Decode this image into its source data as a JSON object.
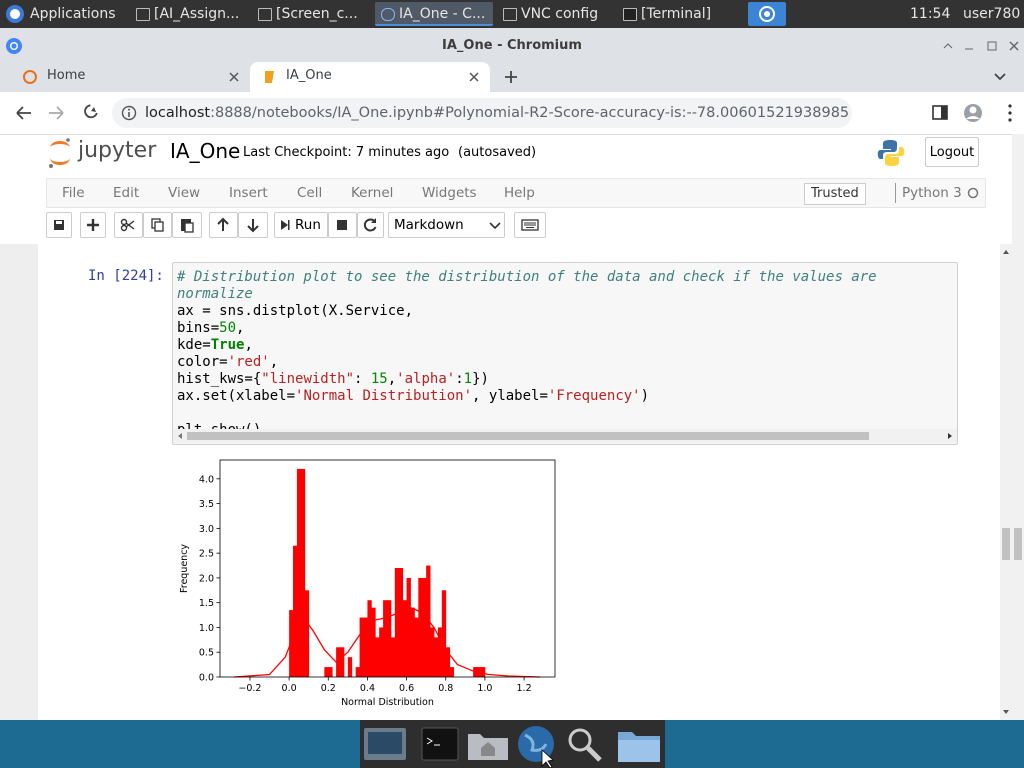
{
  "taskbar": {
    "menu": "Applications",
    "windows": [
      "[AI_Assign...",
      "[Screen_c...",
      "IA_One - C...",
      "VNC config",
      "[Terminal]"
    ],
    "clock": "11:54",
    "user": "user780"
  },
  "browser": {
    "window_title": "IA_One - Chromium",
    "tabs": [
      "Home",
      "IA_One"
    ],
    "url_host": "localhost",
    "url_rest": ":8888/notebooks/IA_One.ipynb#Polynomial-R2-Score-accuracy-is:--78.00601521938985"
  },
  "jupyter": {
    "logo_text": "jupyter",
    "notebook_name": "IA_One",
    "checkpoint": "Last Checkpoint: 7 minutes ago",
    "autosave": "(autosaved)",
    "logout": "Logout",
    "menu": [
      "File",
      "Edit",
      "View",
      "Insert",
      "Cell",
      "Kernel",
      "Widgets",
      "Help"
    ],
    "trusted": "Trusted",
    "kernel": "Python 3",
    "run": "Run",
    "cell_type": "Markdown"
  },
  "cell": {
    "prompt": "In [224]:",
    "code_blocks": [
      [
        [
          {
            "text": "# Distribution plot to see the distribution of the data and check if the values are normalize",
            "color": "#408080",
            "italic": true
          }
        ],
        [
          "ax = sns.distplot(X.Service,"
        ],
        [
          "                  bins=",
          {
            "text": "50",
            "color": "#008800"
          },
          ","
        ],
        [
          "                  kde=",
          {
            "text": "True",
            "color": "#008000",
            "bold": true
          },
          ","
        ],
        [
          "                  color=",
          {
            "text": "'red'",
            "color": "#ba2121"
          },
          ","
        ],
        [
          "                  hist_kws={",
          {
            "text": "\"linewidth\"",
            "color": "#ba2121"
          },
          ": ",
          {
            "text": "15",
            "color": "#008800"
          },
          ",",
          {
            "text": "'alpha'",
            "color": "#ba2121"
          },
          ":",
          {
            "text": "1",
            "color": "#008800"
          },
          "})"
        ],
        [
          "ax.set(xlabel=",
          {
            "text": "'Normal Distribution'",
            "color": "#ba2121"
          },
          ", ylabel=",
          {
            "text": "'Frequency'",
            "color": "#ba2121"
          },
          ")"
        ]
      ],
      [
        [
          "plt.show()"
        ]
      ]
    ]
  },
  "chart_data": {
    "type": "histogram",
    "xlabel": "Normal Distribution",
    "ylabel": "Frequency",
    "color": "#ff0000",
    "bins": [
      0,
      0.02,
      0.04,
      0.06,
      0.08,
      0.1,
      0.12,
      0.14,
      0.16,
      0.18,
      0.2,
      0.22,
      0.24,
      0.26,
      0.28,
      0.3,
      0.32,
      0.34,
      0.36,
      0.38,
      0.4,
      0.42,
      0.44,
      0.46,
      0.48,
      0.5,
      0.52,
      0.54,
      0.56,
      0.58,
      0.6,
      0.62,
      0.64,
      0.66,
      0.68,
      0.7,
      0.72,
      0.74,
      0.76,
      0.78,
      0.8,
      0.82,
      0.84,
      0.86,
      0.88,
      0.9,
      0.92,
      0.94,
      0.96,
      0.98,
      1
    ],
    "counts": [
      1.35,
      2.65,
      4.2,
      4.2,
      1.75,
      0,
      0,
      0,
      0,
      0.2,
      0.2,
      0,
      0.6,
      0.6,
      0,
      0.4,
      0,
      0.2,
      1.2,
      1.2,
      1.55,
      1.4,
      0.8,
      1,
      1.55,
      1.55,
      0.8,
      2.2,
      2.2,
      1.55,
      2,
      1.4,
      1.2,
      2,
      2,
      2.25,
      1,
      0.8,
      1,
      1.75,
      0.6,
      0.2,
      0,
      0,
      0,
      0,
      0,
      0.2,
      0.2,
      0.2
    ],
    "kde": {
      "x": [
        -0.28,
        -0.1,
        -0.02,
        0.04,
        0.08,
        0.12,
        0.18,
        0.24,
        0.3,
        0.36,
        0.44,
        0.5,
        0.56,
        0.62,
        0.68,
        0.74,
        0.8,
        0.86,
        0.94,
        1.02,
        1.12,
        1.28
      ],
      "y": [
        0,
        0.05,
        0.4,
        1,
        1.15,
        0.95,
        0.55,
        0.3,
        0.5,
        0.85,
        1.15,
        1.2,
        1.3,
        1.4,
        1.3,
        1,
        0.55,
        0.25,
        0.12,
        0.05,
        0.02,
        0
      ]
    },
    "xlim": [
      -0.353,
      1.358
    ],
    "ylim": [
      0,
      4.38
    ],
    "xticks": [
      {
        "value": -0.2,
        "label": "−0.2"
      },
      {
        "value": 0,
        "label": "0.0"
      },
      0.2,
      0.4,
      0.6,
      0.8,
      {
        "value": 1,
        "label": "1.0"
      },
      1.2
    ],
    "yticks": [
      {
        "value": 0,
        "label": "0.0"
      },
      0.5,
      {
        "value": 1,
        "label": "1.0"
      },
      1.5,
      {
        "value": 2,
        "label": "2.0"
      },
      2.5,
      {
        "value": 3,
        "label": "3.0"
      },
      3.5,
      {
        "value": 4,
        "label": "4.0"
      }
    ]
  }
}
